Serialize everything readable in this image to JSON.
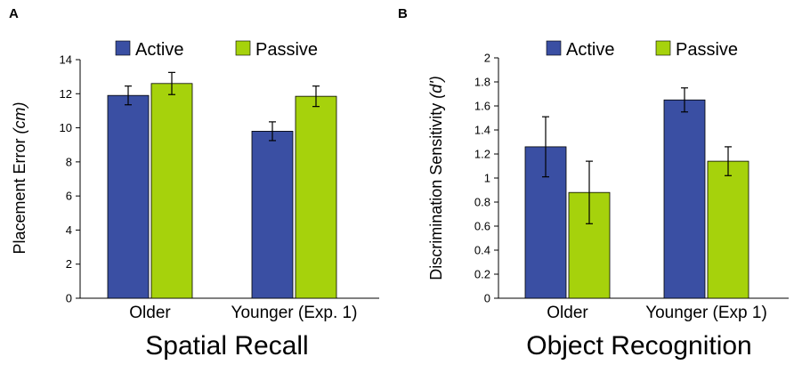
{
  "colors": {
    "active": "#3a4fa3",
    "passive": "#a6d20c"
  },
  "chart_data": [
    {
      "type": "bar",
      "panel_label": "A",
      "caption": "Spatial Recall",
      "ylabel_prefix": "Placement Error ",
      "ylabel_italic": "(cm)",
      "ylim": [
        0,
        14
      ],
      "yticks": [
        "0",
        "2",
        "4",
        "6",
        "8",
        "10",
        "12",
        "14"
      ],
      "categories": [
        "Older",
        "Younger (Exp. 1)"
      ],
      "series": [
        {
          "name": "Active",
          "values": [
            11.9,
            9.8
          ],
          "errors": [
            0.55,
            0.55
          ]
        },
        {
          "name": "Passive",
          "values": [
            12.6,
            11.85
          ],
          "errors": [
            0.65,
            0.6
          ]
        }
      ]
    },
    {
      "type": "bar",
      "panel_label": "B",
      "caption": "Object Recognition",
      "ylabel_prefix": "Discrimination Sensitivity ",
      "ylabel_italic": "(d')",
      "ylim": [
        0,
        2
      ],
      "yticks": [
        "0",
        "0.2",
        "0.4",
        "0.6",
        "0.8",
        "1",
        "1.2",
        "1.4",
        "1.6",
        "1.8",
        "2"
      ],
      "categories": [
        "Older",
        "Younger (Exp 1)"
      ],
      "series": [
        {
          "name": "Active",
          "values": [
            1.26,
            1.65
          ],
          "errors": [
            0.25,
            0.1
          ]
        },
        {
          "name": "Passive",
          "values": [
            0.88,
            1.14
          ],
          "errors": [
            0.26,
            0.12
          ]
        }
      ]
    }
  ]
}
